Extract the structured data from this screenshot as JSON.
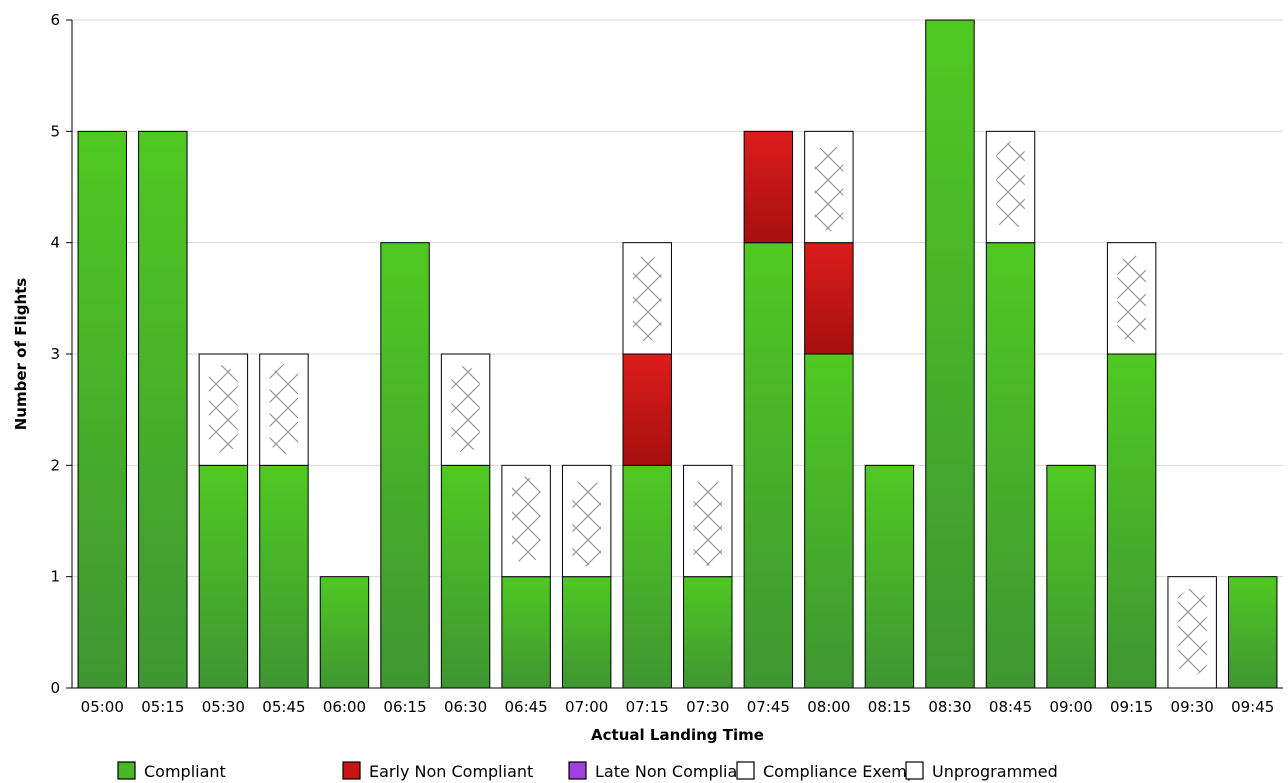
{
  "chart_data": {
    "type": "bar",
    "stacked": true,
    "title": "",
    "xlabel": "Actual Landing Time",
    "ylabel": "Number of Flights",
    "ylim": [
      0,
      6
    ],
    "yticks": [
      0,
      1,
      2,
      3,
      4,
      5,
      6
    ],
    "grid": true,
    "legend_position": "bottom",
    "categories": [
      "05:00",
      "05:15",
      "05:30",
      "05:45",
      "06:00",
      "06:15",
      "06:30",
      "06:45",
      "07:00",
      "07:15",
      "07:30",
      "07:45",
      "08:00",
      "08:15",
      "08:30",
      "08:45",
      "09:00",
      "09:15",
      "09:30",
      "09:45"
    ],
    "series": [
      {
        "name": "Compliant",
        "color": "#44a030",
        "pattern": "green-gradient",
        "values": [
          5,
          5,
          2,
          2,
          1,
          4,
          2,
          1,
          1,
          2,
          1,
          4,
          3,
          2,
          6,
          4,
          2,
          3,
          0,
          1
        ]
      },
      {
        "name": "Early Non Compliant",
        "color": "#c01010",
        "pattern": "red-gradient",
        "values": [
          0,
          0,
          0,
          0,
          0,
          0,
          0,
          0,
          0,
          1,
          0,
          1,
          1,
          0,
          0,
          0,
          0,
          0,
          0,
          0
        ]
      },
      {
        "name": "Late Non Compliant",
        "color": "#a040e0",
        "pattern": "solid",
        "values": [
          0,
          0,
          0,
          0,
          0,
          0,
          0,
          0,
          0,
          0,
          0,
          0,
          0,
          0,
          0,
          0,
          0,
          0,
          0,
          0
        ]
      },
      {
        "name": "Compliance Exempt",
        "color": "#ffffff",
        "pattern": "crosshatch",
        "values": [
          0,
          0,
          1,
          1,
          0,
          0,
          1,
          1,
          1,
          1,
          1,
          0,
          1,
          0,
          0,
          1,
          0,
          1,
          1,
          0
        ]
      },
      {
        "name": "Unprogrammed",
        "color": "#ffffff",
        "pattern": "solid",
        "values": [
          0,
          0,
          0,
          0,
          0,
          0,
          0,
          0,
          0,
          0,
          0,
          0,
          0,
          0,
          0,
          0,
          0,
          0,
          0,
          0
        ]
      }
    ]
  }
}
